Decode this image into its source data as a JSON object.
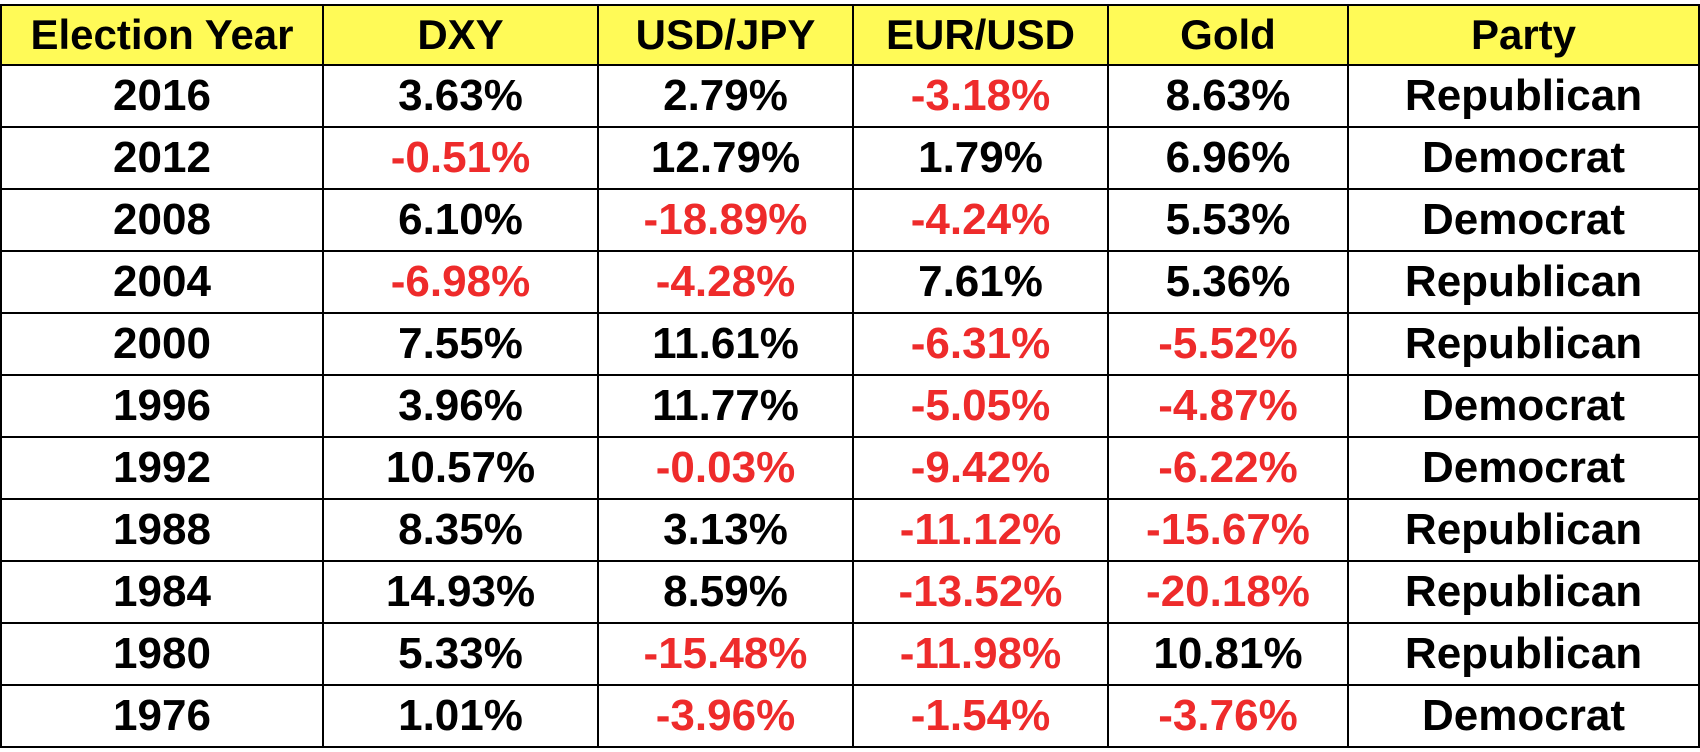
{
  "table": {
    "headers": [
      "Election Year",
      "DXY",
      "USD/JPY",
      "EUR/USD",
      "Gold",
      "Party"
    ],
    "rows": [
      [
        "2016",
        "3.63%",
        "2.79%",
        "-3.18%",
        "8.63%",
        "Republican"
      ],
      [
        "2012",
        "-0.51%",
        "12.79%",
        "1.79%",
        "6.96%",
        "Democrat"
      ],
      [
        "2008",
        "6.10%",
        "-18.89%",
        "-4.24%",
        "5.53%",
        "Democrat"
      ],
      [
        "2004",
        "-6.98%",
        "-4.28%",
        "7.61%",
        "5.36%",
        "Republican"
      ],
      [
        "2000",
        "7.55%",
        "11.61%",
        "-6.31%",
        "-5.52%",
        "Republican"
      ],
      [
        "1996",
        "3.96%",
        "11.77%",
        "-5.05%",
        "-4.87%",
        "Democrat"
      ],
      [
        "1992",
        "10.57%",
        "-0.03%",
        "-9.42%",
        "-6.22%",
        "Democrat"
      ],
      [
        "1988",
        "8.35%",
        "3.13%",
        "-11.12%",
        "-15.67%",
        "Republican"
      ],
      [
        "1984",
        "14.93%",
        "8.59%",
        "-13.52%",
        "-20.18%",
        "Republican"
      ],
      [
        "1980",
        "5.33%",
        "-15.48%",
        "-11.98%",
        "10.81%",
        "Republican"
      ],
      [
        "1976",
        "1.01%",
        "-3.96%",
        "-1.54%",
        "-3.76%",
        "Democrat"
      ]
    ]
  },
  "colors": {
    "header_background": "#fffa57",
    "negative_text": "#ee2b2b",
    "text": "#000000",
    "border": "#000000"
  }
}
